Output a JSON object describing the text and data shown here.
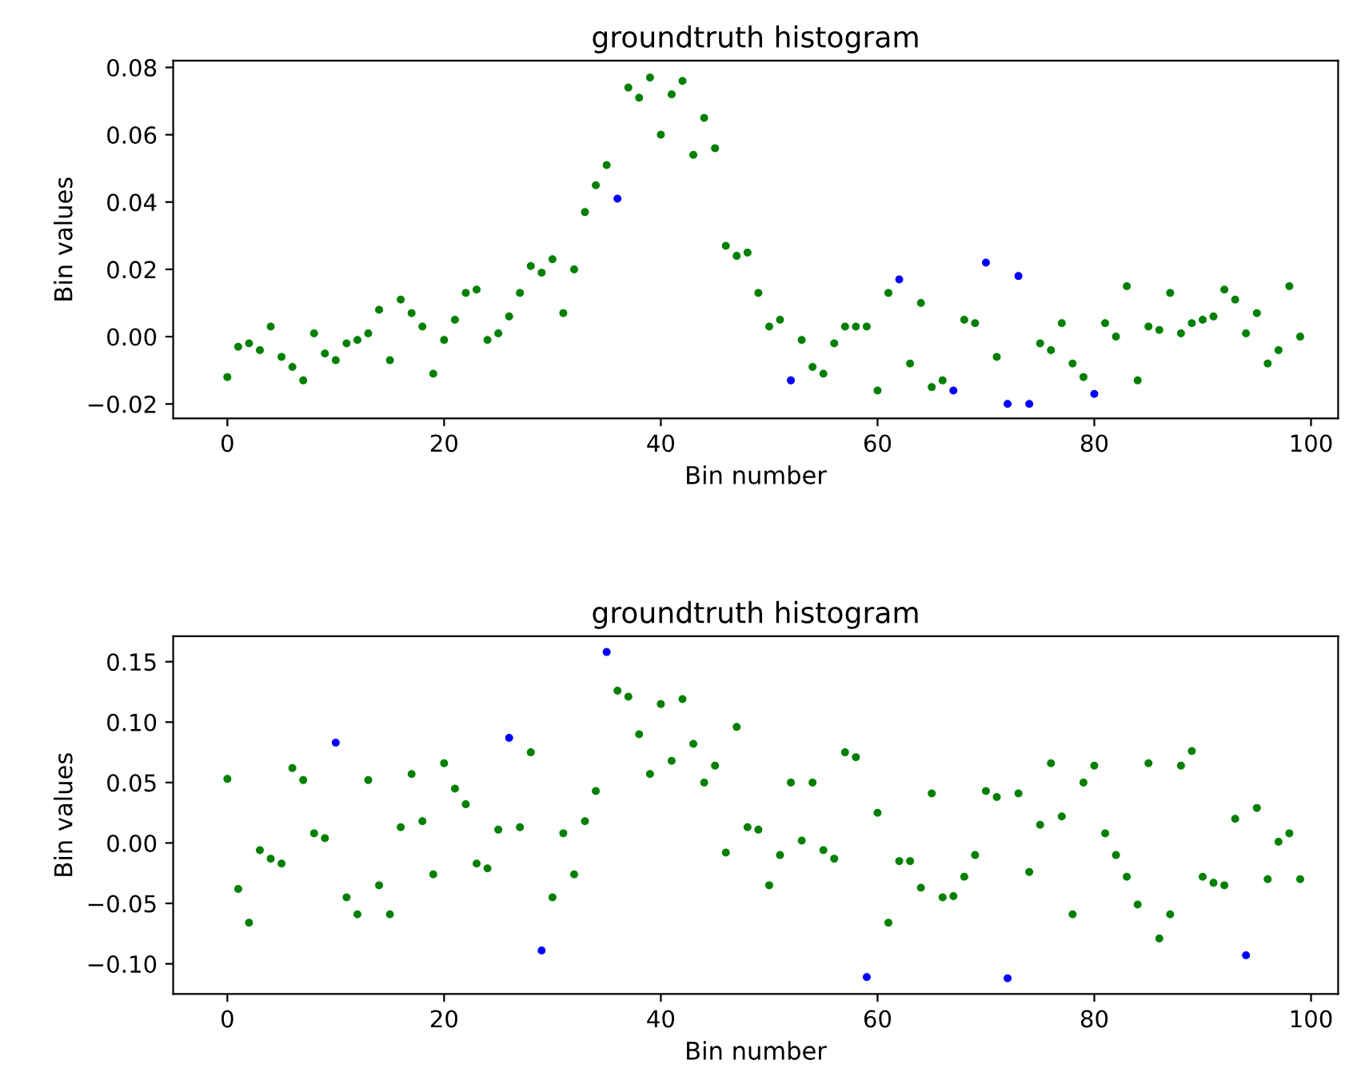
{
  "chart_data": [
    {
      "type": "scatter",
      "title": "groundtruth histogram",
      "xlabel": "Bin number",
      "ylabel": "Bin values",
      "grid": false,
      "legend": false,
      "marker": "circle",
      "x": [
        0,
        1,
        2,
        3,
        4,
        5,
        6,
        7,
        8,
        9,
        10,
        11,
        12,
        13,
        14,
        15,
        16,
        17,
        18,
        19,
        20,
        21,
        22,
        23,
        24,
        25,
        26,
        27,
        28,
        29,
        30,
        31,
        32,
        33,
        34,
        35,
        36,
        37,
        38,
        39,
        40,
        41,
        42,
        43,
        44,
        45,
        46,
        47,
        48,
        49,
        50,
        51,
        52,
        53,
        54,
        55,
        56,
        57,
        58,
        59,
        60,
        61,
        62,
        63,
        64,
        65,
        66,
        67,
        68,
        69,
        70,
        71,
        72,
        73,
        74,
        75,
        76,
        77,
        78,
        79,
        80,
        81,
        82,
        83,
        84,
        85,
        86,
        87,
        88,
        89,
        90,
        91,
        92,
        93,
        94,
        95,
        96,
        97,
        98,
        99
      ],
      "values": [
        -0.012,
        -0.003,
        -0.002,
        -0.004,
        0.003,
        -0.006,
        -0.009,
        -0.013,
        0.001,
        -0.005,
        -0.007,
        -0.002,
        -0.001,
        0.001,
        0.008,
        -0.007,
        0.011,
        0.007,
        0.003,
        -0.011,
        -0.001,
        0.005,
        0.013,
        0.014,
        -0.001,
        0.001,
        0.006,
        0.013,
        0.021,
        0.019,
        0.023,
        0.007,
        0.02,
        0.037,
        0.045,
        0.051,
        0.041,
        0.074,
        0.071,
        0.077,
        0.06,
        0.072,
        0.076,
        0.054,
        0.065,
        0.056,
        0.027,
        0.024,
        0.025,
        0.013,
        0.003,
        0.005,
        -0.013,
        -0.001,
        -0.009,
        -0.011,
        -0.002,
        0.003,
        0.003,
        0.003,
        -0.016,
        0.013,
        0.017,
        -0.008,
        0.01,
        -0.015,
        -0.013,
        -0.016,
        0.005,
        0.004,
        0.022,
        -0.006,
        -0.02,
        0.018,
        -0.02,
        -0.002,
        -0.004,
        0.004,
        -0.008,
        -0.012,
        -0.017,
        0.004,
        0.0,
        0.015,
        -0.013,
        0.003,
        0.002,
        0.013,
        0.001,
        0.004,
        0.005,
        0.006,
        0.014,
        0.011,
        0.001,
        0.007,
        -0.008,
        -0.004,
        0.015,
        0.0
      ],
      "colors": [
        "#008000",
        "#008000",
        "#008000",
        "#008000",
        "#008000",
        "#008000",
        "#008000",
        "#008000",
        "#008000",
        "#008000",
        "#008000",
        "#008000",
        "#008000",
        "#008000",
        "#008000",
        "#008000",
        "#008000",
        "#008000",
        "#008000",
        "#008000",
        "#008000",
        "#008000",
        "#008000",
        "#008000",
        "#008000",
        "#008000",
        "#008000",
        "#008000",
        "#008000",
        "#008000",
        "#008000",
        "#008000",
        "#008000",
        "#008000",
        "#008000",
        "#008000",
        "#0000ff",
        "#008000",
        "#008000",
        "#008000",
        "#008000",
        "#008000",
        "#008000",
        "#008000",
        "#008000",
        "#008000",
        "#008000",
        "#008000",
        "#008000",
        "#008000",
        "#008000",
        "#008000",
        "#0000ff",
        "#008000",
        "#008000",
        "#008000",
        "#008000",
        "#008000",
        "#008000",
        "#008000",
        "#008000",
        "#008000",
        "#0000ff",
        "#008000",
        "#008000",
        "#008000",
        "#008000",
        "#0000ff",
        "#008000",
        "#008000",
        "#0000ff",
        "#008000",
        "#0000ff",
        "#0000ff",
        "#0000ff",
        "#008000",
        "#008000",
        "#008000",
        "#008000",
        "#008000",
        "#0000ff",
        "#008000",
        "#008000",
        "#008000",
        "#008000",
        "#008000",
        "#008000",
        "#008000",
        "#008000",
        "#008000",
        "#008000",
        "#008000",
        "#008000",
        "#008000",
        "#008000",
        "#008000",
        "#008000",
        "#008000",
        "#008000",
        "#008000"
      ],
      "xlim": [
        -5,
        102.5
      ],
      "xticks": [
        0,
        20,
        40,
        60,
        80,
        100
      ],
      "ylim": [
        -0.0243,
        0.082
      ],
      "yticks": [
        {
          "value": -0.02,
          "label": "−0.02"
        },
        {
          "value": 0.0,
          "label": "0.00"
        },
        {
          "value": 0.02,
          "label": "0.02"
        },
        {
          "value": 0.04,
          "label": "0.04"
        },
        {
          "value": 0.06,
          "label": "0.06"
        },
        {
          "value": 0.08,
          "label": "0.08"
        }
      ]
    },
    {
      "type": "scatter",
      "title": "groundtruth histogram",
      "xlabel": "Bin number",
      "ylabel": "Bin values",
      "grid": false,
      "legend": false,
      "marker": "circle",
      "x": [
        0,
        1,
        2,
        3,
        4,
        5,
        6,
        7,
        8,
        9,
        10,
        11,
        12,
        13,
        14,
        15,
        16,
        17,
        18,
        19,
        20,
        21,
        22,
        23,
        24,
        25,
        26,
        27,
        28,
        29,
        30,
        31,
        32,
        33,
        34,
        35,
        36,
        37,
        38,
        39,
        40,
        41,
        42,
        43,
        44,
        45,
        46,
        47,
        48,
        49,
        50,
        51,
        52,
        53,
        54,
        55,
        56,
        57,
        58,
        59,
        60,
        61,
        62,
        63,
        64,
        65,
        66,
        67,
        68,
        69,
        70,
        71,
        72,
        73,
        74,
        75,
        76,
        77,
        78,
        79,
        80,
        81,
        82,
        83,
        84,
        85,
        86,
        87,
        88,
        89,
        90,
        91,
        92,
        93,
        94,
        95,
        96,
        97,
        98,
        99
      ],
      "values": [
        0.053,
        -0.038,
        -0.066,
        -0.006,
        -0.013,
        -0.017,
        0.062,
        0.052,
        0.008,
        0.004,
        0.083,
        -0.045,
        -0.059,
        0.052,
        -0.035,
        -0.059,
        0.013,
        0.057,
        0.018,
        -0.026,
        0.066,
        0.045,
        0.032,
        -0.017,
        -0.021,
        0.011,
        0.087,
        0.013,
        0.075,
        -0.089,
        -0.045,
        0.008,
        -0.026,
        0.018,
        0.043,
        0.158,
        0.126,
        0.121,
        0.09,
        0.057,
        0.115,
        0.068,
        0.119,
        0.082,
        0.05,
        0.064,
        -0.008,
        0.096,
        0.013,
        0.011,
        -0.035,
        -0.01,
        0.05,
        0.002,
        0.05,
        -0.006,
        -0.013,
        0.075,
        0.071,
        -0.111,
        0.025,
        -0.066,
        -0.015,
        -0.015,
        -0.037,
        0.041,
        -0.045,
        -0.044,
        -0.028,
        -0.01,
        0.043,
        0.038,
        -0.112,
        0.041,
        -0.024,
        0.015,
        0.066,
        0.022,
        -0.059,
        0.05,
        0.064,
        0.008,
        -0.01,
        -0.028,
        -0.051,
        0.066,
        -0.079,
        -0.059,
        0.064,
        0.076,
        -0.028,
        -0.033,
        -0.035,
        0.02,
        -0.093,
        0.029,
        -0.03,
        0.001,
        0.008,
        -0.03
      ],
      "colors": [
        "#008000",
        "#008000",
        "#008000",
        "#008000",
        "#008000",
        "#008000",
        "#008000",
        "#008000",
        "#008000",
        "#008000",
        "#0000ff",
        "#008000",
        "#008000",
        "#008000",
        "#008000",
        "#008000",
        "#008000",
        "#008000",
        "#008000",
        "#008000",
        "#008000",
        "#008000",
        "#008000",
        "#008000",
        "#008000",
        "#008000",
        "#0000ff",
        "#008000",
        "#008000",
        "#0000ff",
        "#008000",
        "#008000",
        "#008000",
        "#008000",
        "#008000",
        "#0000ff",
        "#008000",
        "#008000",
        "#008000",
        "#008000",
        "#008000",
        "#008000",
        "#008000",
        "#008000",
        "#008000",
        "#008000",
        "#008000",
        "#008000",
        "#008000",
        "#008000",
        "#008000",
        "#008000",
        "#008000",
        "#008000",
        "#008000",
        "#008000",
        "#008000",
        "#008000",
        "#008000",
        "#0000ff",
        "#008000",
        "#008000",
        "#008000",
        "#008000",
        "#008000",
        "#008000",
        "#008000",
        "#008000",
        "#008000",
        "#008000",
        "#008000",
        "#008000",
        "#0000ff",
        "#008000",
        "#008000",
        "#008000",
        "#008000",
        "#008000",
        "#008000",
        "#008000",
        "#008000",
        "#008000",
        "#008000",
        "#008000",
        "#008000",
        "#008000",
        "#008000",
        "#008000",
        "#008000",
        "#008000",
        "#008000",
        "#008000",
        "#008000",
        "#008000",
        "#0000ff",
        "#008000",
        "#008000",
        "#008000",
        "#008000",
        "#008000"
      ],
      "xlim": [
        -5,
        102.5
      ],
      "xticks": [
        0,
        20,
        40,
        60,
        80,
        100
      ],
      "ylim": [
        -0.125,
        0.171
      ],
      "yticks": [
        {
          "value": -0.1,
          "label": "−0.10"
        },
        {
          "value": -0.05,
          "label": "−0.05"
        },
        {
          "value": 0.0,
          "label": "0.00"
        },
        {
          "value": 0.05,
          "label": "0.05"
        },
        {
          "value": 0.1,
          "label": "0.10"
        },
        {
          "value": 0.15,
          "label": "0.15"
        }
      ]
    }
  ]
}
